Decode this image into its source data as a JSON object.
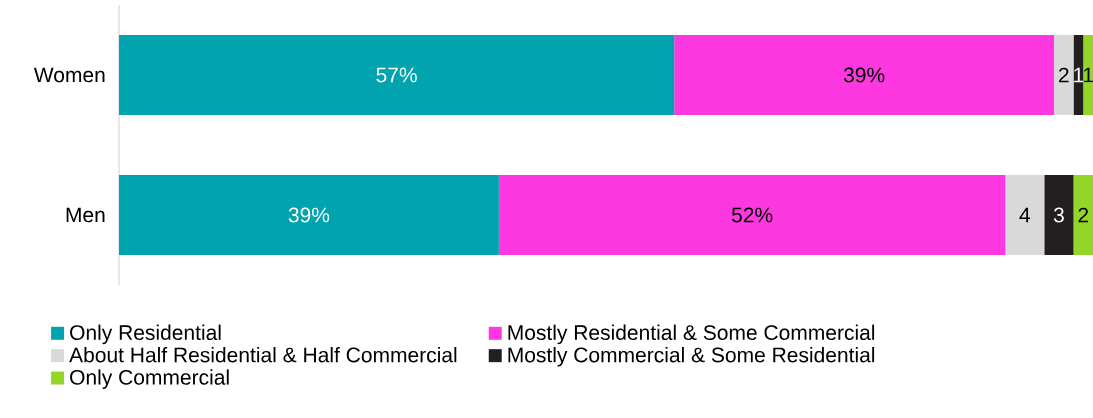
{
  "chart_data": {
    "type": "bar",
    "orientation": "horizontal",
    "stacked": true,
    "legend": "bottom",
    "categories": [
      "Women",
      "Men"
    ],
    "series": [
      {
        "name": "Only Residential",
        "color": "#00a3ae",
        "values": [
          57,
          39
        ],
        "value_labels": [
          "57%",
          "39%"
        ]
      },
      {
        "name": "Mostly Residential & Some Commercial",
        "color": "#fd38e0",
        "values": [
          39,
          52
        ],
        "value_labels": [
          "39%",
          "52%"
        ]
      },
      {
        "name": "About Half Residential & Half Commercial",
        "color": "#d9d9d9",
        "values": [
          2,
          4
        ],
        "value_labels": [
          "2",
          "4"
        ]
      },
      {
        "name": "Mostly Commercial & Some Residential",
        "color": "#231f20",
        "values": [
          1,
          3
        ],
        "value_labels": [
          "1",
          "3"
        ]
      },
      {
        "name": "Only Commercial",
        "color": "#94d52a",
        "values": [
          1,
          2
        ],
        "value_labels": [
          "1",
          "2"
        ]
      }
    ]
  }
}
